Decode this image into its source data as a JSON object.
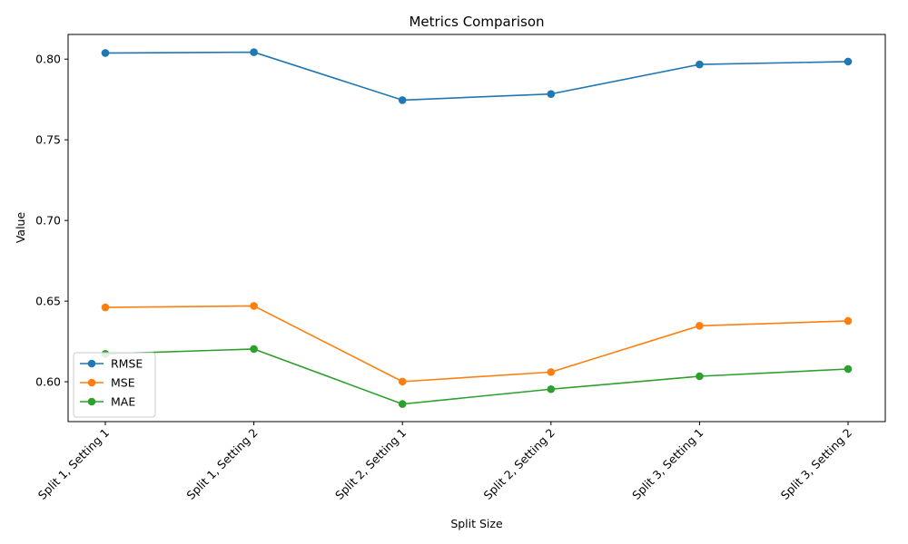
{
  "chart_data": {
    "type": "line",
    "title": "Metrics Comparison",
    "xlabel": "Split Size",
    "ylabel": "Value",
    "categories": [
      "Split 1, Setting 1",
      "Split 1, Setting 2",
      "Split 2, Setting 1",
      "Split 2, Setting 2",
      "Split 3, Setting 1",
      "Split 3, Setting 2"
    ],
    "series": [
      {
        "name": "RMSE",
        "color": "#1f77b4",
        "values": [
          0.8038,
          0.8043,
          0.7746,
          0.7784,
          0.7967,
          0.7985
        ]
      },
      {
        "name": "MSE",
        "color": "#ff7f0e",
        "values": [
          0.6461,
          0.647,
          0.6001,
          0.606,
          0.6347,
          0.6377
        ]
      },
      {
        "name": "MAE",
        "color": "#2ca02c",
        "values": [
          0.6173,
          0.6203,
          0.5862,
          0.5954,
          0.6034,
          0.6079
        ]
      }
    ],
    "ylim": [
      0.5753,
      0.8153
    ],
    "yticks": [
      0.6,
      0.65,
      0.7,
      0.75,
      0.8
    ],
    "ytick_labels": [
      "0.60",
      "0.65",
      "0.70",
      "0.75",
      "0.80"
    ],
    "grid": false,
    "legend_position": "lower-left",
    "marker": "circle"
  }
}
